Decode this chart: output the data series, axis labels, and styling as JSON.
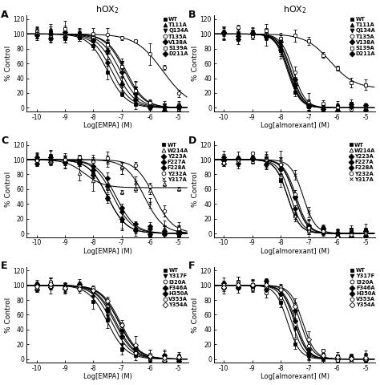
{
  "title": "hOX$_2$",
  "xlabels": [
    "Log[EMPA] (M)",
    "Log[almorexant] (M)",
    "Log[EMPA] (M)",
    "Log[almorexant] (M)",
    "Log[EMPA] (M)",
    "Log[almorexant] (M)"
  ],
  "ylabel": "% Control",
  "panel_A": {
    "legends": [
      "WT",
      "T111A",
      "Q134A",
      "T135A",
      "V138A",
      "S139A",
      "D211A"
    ],
    "markers": [
      "s",
      "^",
      "v",
      "o",
      "D",
      "s",
      "D"
    ],
    "fillstyles": [
      "full",
      "full",
      "full",
      "none",
      "full",
      "none",
      "full"
    ],
    "ic50s": [
      -7.5,
      -7.2,
      -6.85,
      -5.55,
      -7.05,
      -6.9,
      -7.35
    ],
    "hills": [
      1.3,
      1.3,
      1.3,
      0.9,
      1.3,
      1.3,
      1.3
    ],
    "tops": [
      100,
      100,
      100,
      100,
      100,
      100,
      100
    ],
    "bottoms": [
      0,
      0,
      0,
      0,
      0,
      0,
      0
    ]
  },
  "panel_B": {
    "legends": [
      "WT",
      "T111A",
      "Q134A",
      "T135A",
      "V138A",
      "S139A",
      "D211A"
    ],
    "markers": [
      "s",
      "^",
      "v",
      "o",
      "D",
      "s",
      "D"
    ],
    "fillstyles": [
      "full",
      "full",
      "full",
      "none",
      "full",
      "none",
      "full"
    ],
    "ic50s": [
      -7.75,
      -7.7,
      -7.65,
      -7.55,
      -7.72,
      -6.25,
      -7.62
    ],
    "hills": [
      2.0,
      2.0,
      2.0,
      2.0,
      2.0,
      1.0,
      2.0
    ],
    "tops": [
      100,
      100,
      100,
      100,
      100,
      100,
      100
    ],
    "bottoms": [
      0,
      0,
      0,
      0,
      0,
      26,
      0
    ]
  },
  "panel_C": {
    "legends": [
      "WT",
      "W214A",
      "Y223A",
      "F227A",
      "F228A",
      "Y232A",
      "Y317A"
    ],
    "markers": [
      "s",
      "^",
      "D",
      "D",
      "D",
      "o",
      "x"
    ],
    "fillstyles": [
      "full",
      "none",
      "full",
      "full",
      "full",
      "none",
      "full"
    ],
    "ic50s": [
      -7.5,
      -8.3,
      -7.5,
      -7.2,
      -7.3,
      -5.85,
      -6.2
    ],
    "hills": [
      1.3,
      1.3,
      1.3,
      1.3,
      1.3,
      1.3,
      1.3
    ],
    "tops": [
      100,
      100,
      100,
      100,
      100,
      100,
      100
    ],
    "bottoms": [
      0,
      62,
      0,
      0,
      0,
      0,
      0
    ]
  },
  "panel_D": {
    "legends": [
      "WT",
      "W214A",
      "Y223A",
      "F227A",
      "F228A",
      "Y232A",
      "Y317A"
    ],
    "markers": [
      "s",
      "^",
      "D",
      "D",
      "D",
      "o",
      "x"
    ],
    "fillstyles": [
      "full",
      "none",
      "full",
      "full",
      "full",
      "none",
      "full"
    ],
    "ic50s": [
      -7.75,
      -7.75,
      -7.65,
      -7.5,
      -7.5,
      -7.45,
      -7.2
    ],
    "hills": [
      2.0,
      2.0,
      2.0,
      2.0,
      2.0,
      2.0,
      2.0
    ],
    "tops": [
      100,
      100,
      100,
      100,
      100,
      100,
      100
    ],
    "bottoms": [
      0,
      0,
      0,
      0,
      0,
      0,
      0
    ]
  },
  "panel_E": {
    "legends": [
      "WT",
      "Y317F",
      "I320A",
      "F346A",
      "H350A",
      "V353A",
      "Y354A"
    ],
    "markers": [
      "s",
      "v",
      "o",
      "D",
      "D",
      "o",
      "D"
    ],
    "fillstyles": [
      "full",
      "full",
      "none",
      "full",
      "full",
      "none",
      "none"
    ],
    "ic50s": [
      -7.5,
      -7.35,
      -7.1,
      -7.2,
      -7.25,
      -7.1,
      -7.05
    ],
    "hills": [
      1.3,
      1.3,
      1.3,
      1.3,
      1.3,
      1.3,
      1.3
    ],
    "tops": [
      100,
      100,
      100,
      100,
      100,
      100,
      100
    ],
    "bottoms": [
      0,
      0,
      0,
      0,
      0,
      0,
      0
    ]
  },
  "panel_F": {
    "legends": [
      "WT",
      "Y317F",
      "I320A",
      "F346A",
      "H350A",
      "V353A",
      "Y354A"
    ],
    "markers": [
      "s",
      "v",
      "o",
      "D",
      "D",
      "o",
      "D"
    ],
    "fillstyles": [
      "full",
      "full",
      "none",
      "full",
      "full",
      "none",
      "none"
    ],
    "ic50s": [
      -7.75,
      -7.6,
      -7.5,
      -7.45,
      -7.5,
      -7.3,
      -7.22
    ],
    "hills": [
      2.0,
      2.0,
      2.0,
      2.0,
      2.0,
      2.0,
      2.0
    ],
    "tops": [
      100,
      100,
      100,
      100,
      100,
      100,
      100
    ],
    "bottoms": [
      0,
      0,
      0,
      0,
      0,
      0,
      0
    ]
  }
}
